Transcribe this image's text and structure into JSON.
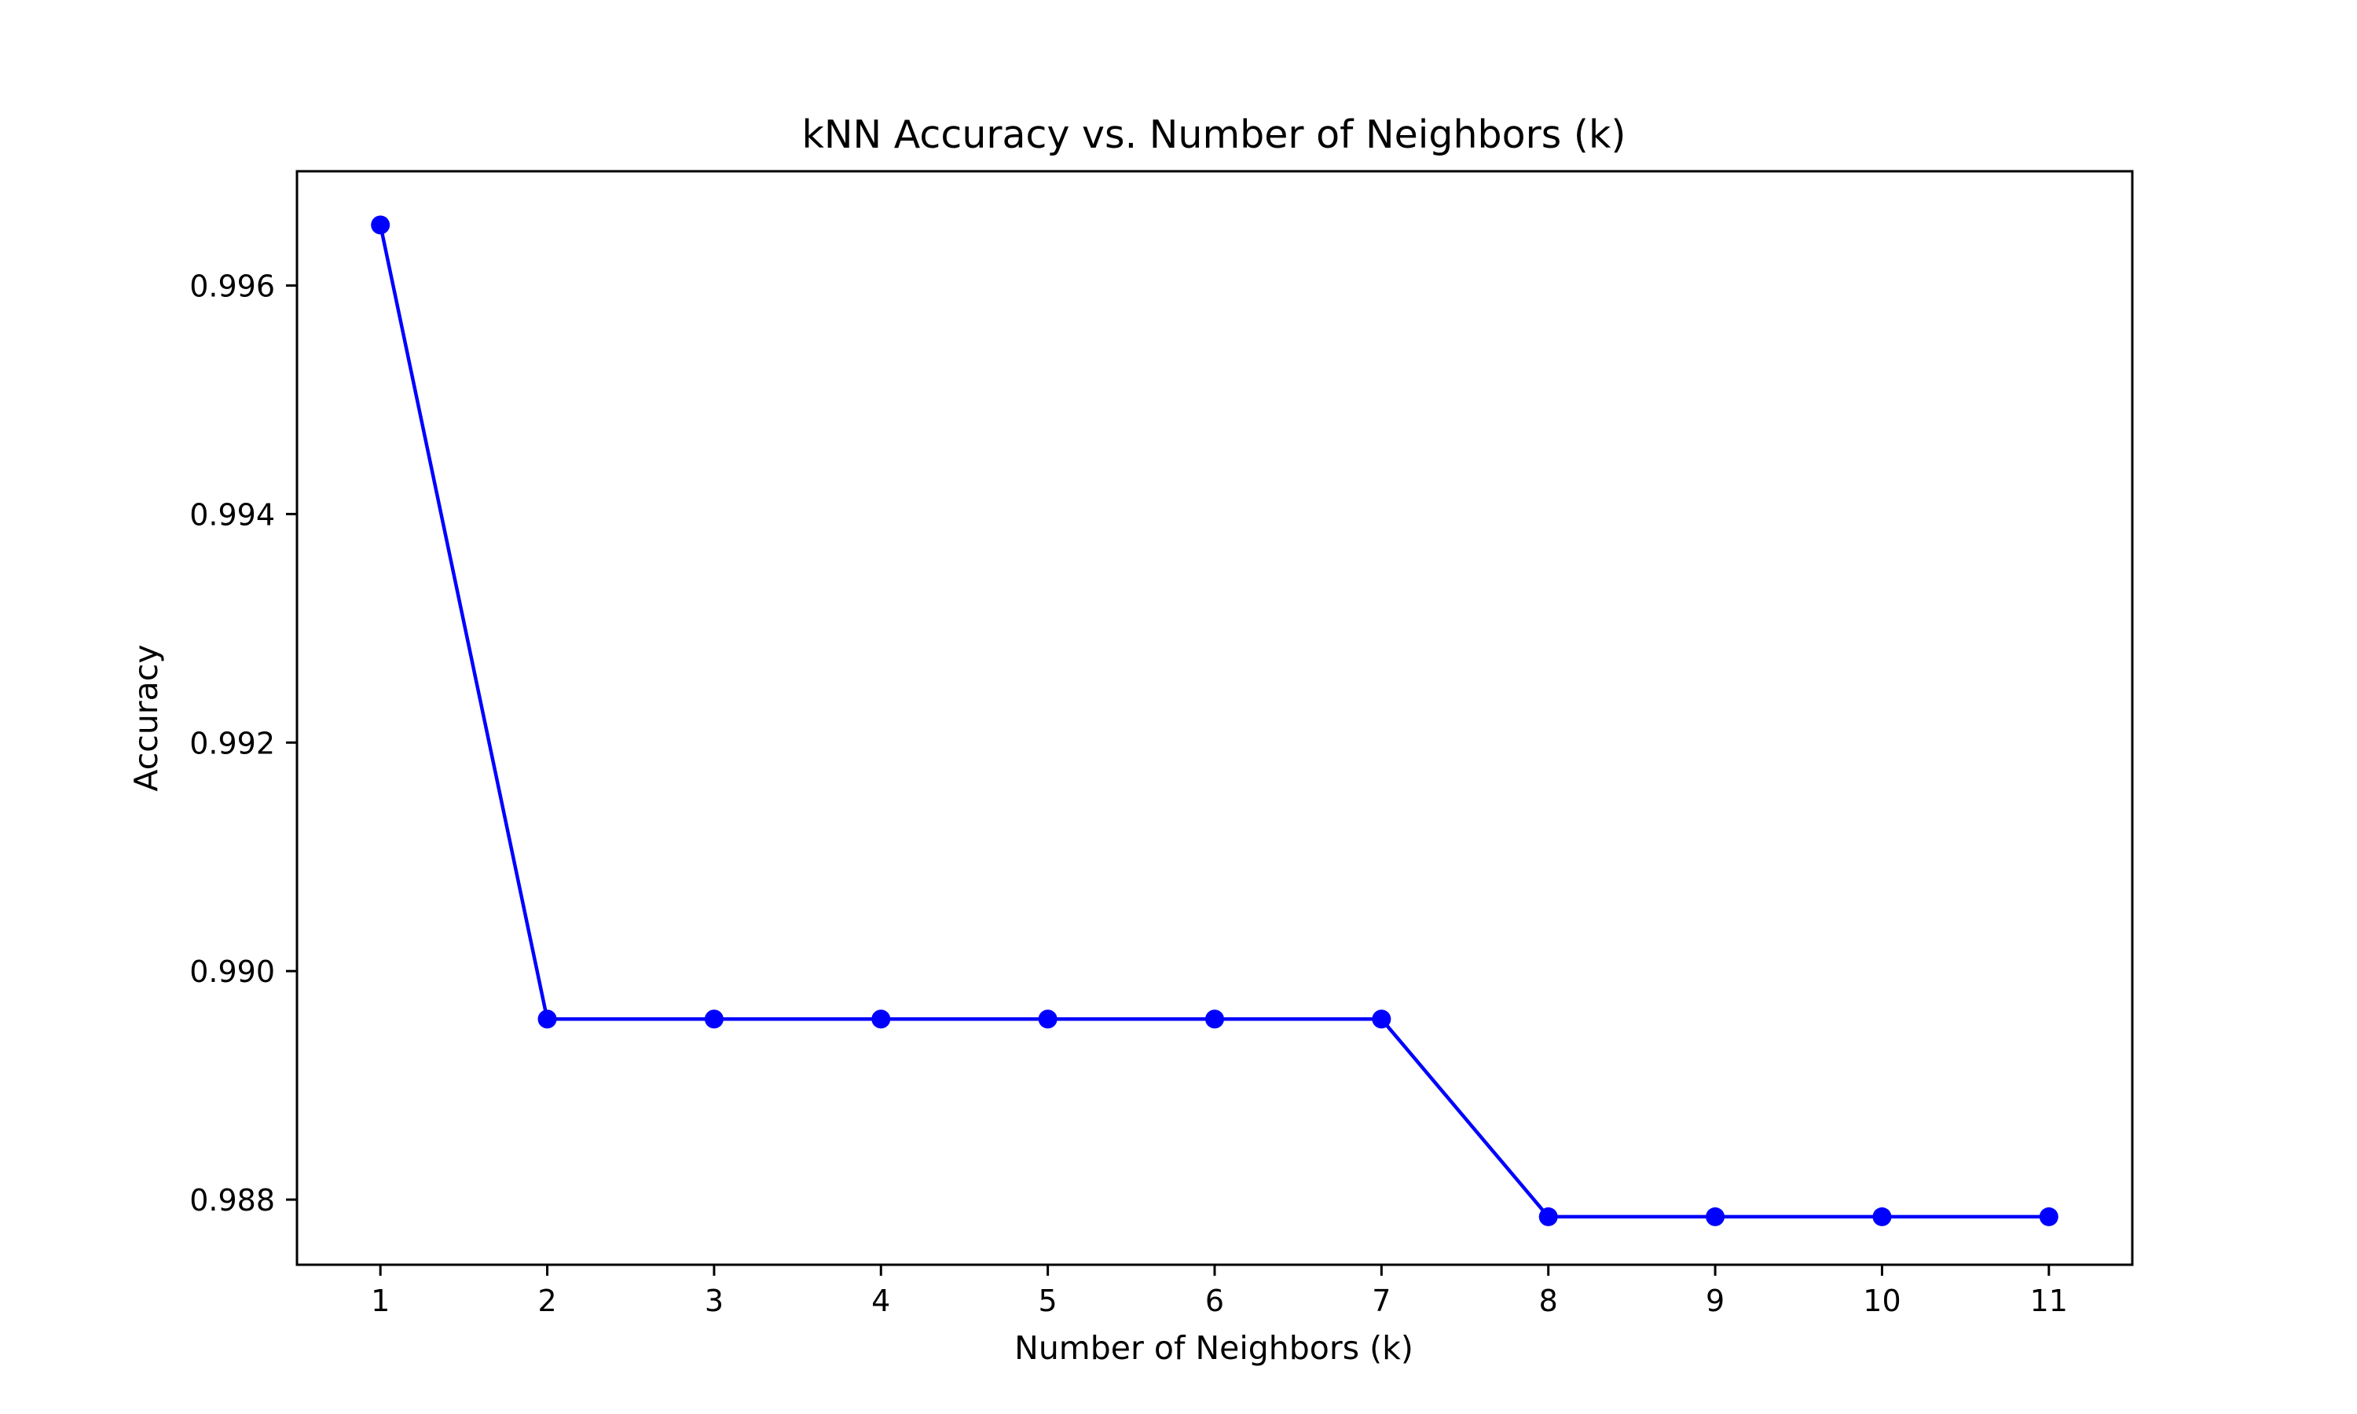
{
  "chart_data": {
    "type": "line",
    "title": "kNN Accuracy vs. Number of Neighbors (k)",
    "xlabel": "Number of Neighbors (k)",
    "ylabel": "Accuracy",
    "x": [
      1,
      2,
      3,
      4,
      5,
      6,
      7,
      8,
      9,
      10,
      11
    ],
    "xticks": [
      "1",
      "2",
      "3",
      "4",
      "5",
      "6",
      "7",
      "8",
      "9",
      "10",
      "11"
    ],
    "xlim": [
      0.5,
      11.5
    ],
    "yticks": [
      "0.988",
      "0.990",
      "0.992",
      "0.994",
      "0.996"
    ],
    "ytick_values": [
      0.988,
      0.99,
      0.992,
      0.994,
      0.996
    ],
    "ylim": [
      0.98743,
      0.997
    ],
    "series": [
      {
        "values": [
          0.99653,
          0.98958,
          0.98958,
          0.98958,
          0.98958,
          0.98958,
          0.98958,
          0.98785,
          0.98785,
          0.98785,
          0.98785
        ],
        "color": "#0000ff",
        "marker": "circle"
      }
    ],
    "grid": false,
    "legend": "none"
  }
}
